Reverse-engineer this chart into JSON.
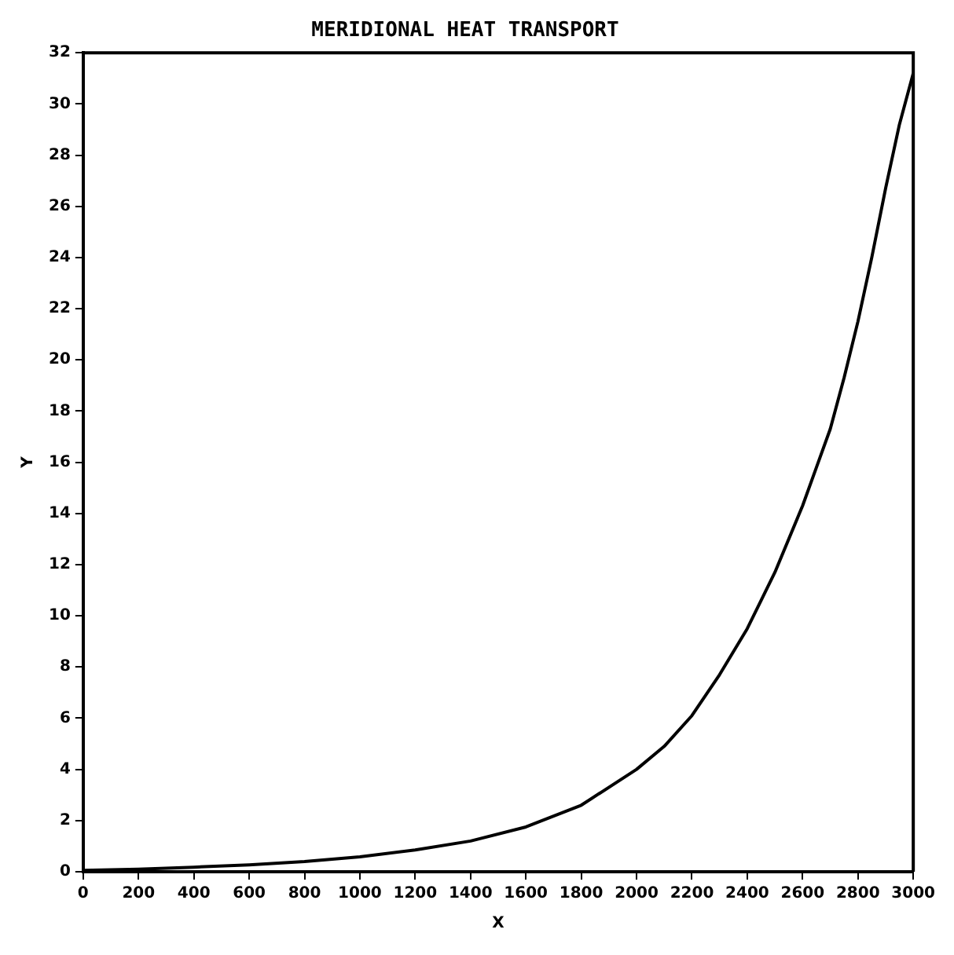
{
  "chart_data": {
    "type": "line",
    "title": "MERIDIONAL HEAT TRANSPORT",
    "xlabel": "X",
    "ylabel": "Y",
    "x": [
      0,
      200,
      400,
      600,
      800,
      1000,
      1200,
      1400,
      1600,
      1800,
      2000,
      2100,
      2200,
      2300,
      2400,
      2500,
      2600,
      2650,
      2700,
      2750,
      2800,
      2850,
      2900,
      2950,
      3000
    ],
    "series": [
      {
        "color": "#000000",
        "values": [
          0.05,
          0.1,
          0.18,
          0.27,
          0.4,
          0.58,
          0.85,
          1.2,
          1.75,
          2.6,
          4,
          4.9,
          6.1,
          7.7,
          9.5,
          11.7,
          14.3,
          15.8,
          17.3,
          19.3,
          21.5,
          24,
          26.7,
          29.2,
          31.2
        ]
      }
    ],
    "xlim": [
      0,
      3000
    ],
    "xticks": [
      0,
      200,
      400,
      600,
      800,
      1000,
      1200,
      1400,
      1600,
      1800,
      2000,
      2200,
      2400,
      2600,
      2800,
      3000
    ],
    "ylim": [
      0,
      32
    ],
    "yticks": [
      0,
      2,
      4,
      6,
      8,
      10,
      12,
      14,
      16,
      18,
      20,
      22,
      24,
      26,
      28,
      30,
      32
    ],
    "grid": false,
    "legend": false,
    "marker": "none",
    "line_style": "solid"
  }
}
